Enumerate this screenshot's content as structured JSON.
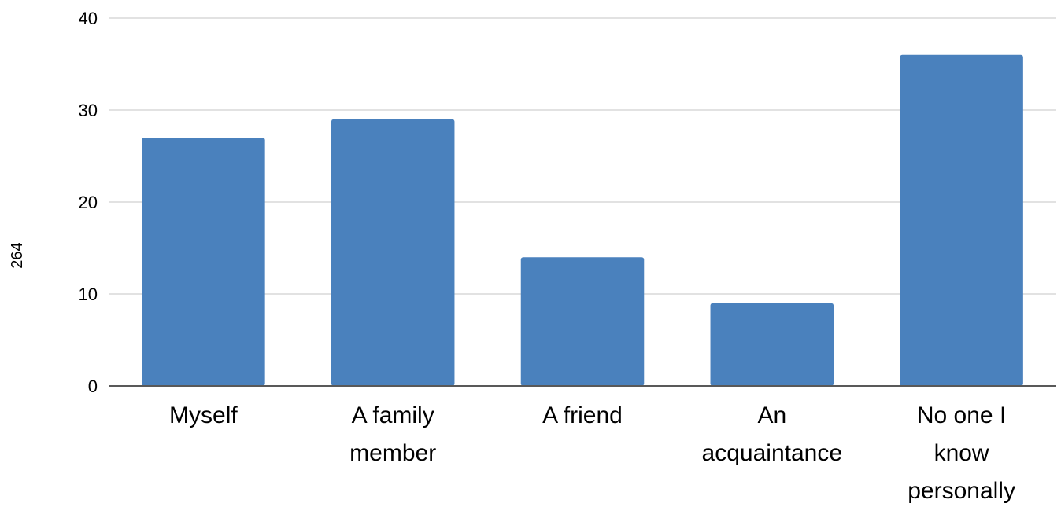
{
  "chart_data": {
    "type": "bar",
    "title": "",
    "xlabel": "",
    "ylabel": "264",
    "categories": [
      [
        "Myself"
      ],
      [
        "A family",
        "member"
      ],
      [
        "A friend"
      ],
      [
        "An",
        "acquaintance"
      ],
      [
        "No one I",
        "know",
        "personally"
      ]
    ],
    "values": [
      27,
      29,
      14,
      9,
      36
    ],
    "ylim": [
      0,
      40
    ],
    "yticks": [
      0,
      10,
      20,
      30,
      40
    ],
    "grid": true,
    "legend": "none",
    "colors": {
      "bar": "#4a81bd",
      "grid": "#d9d9d9",
      "axis": "#595959"
    }
  }
}
